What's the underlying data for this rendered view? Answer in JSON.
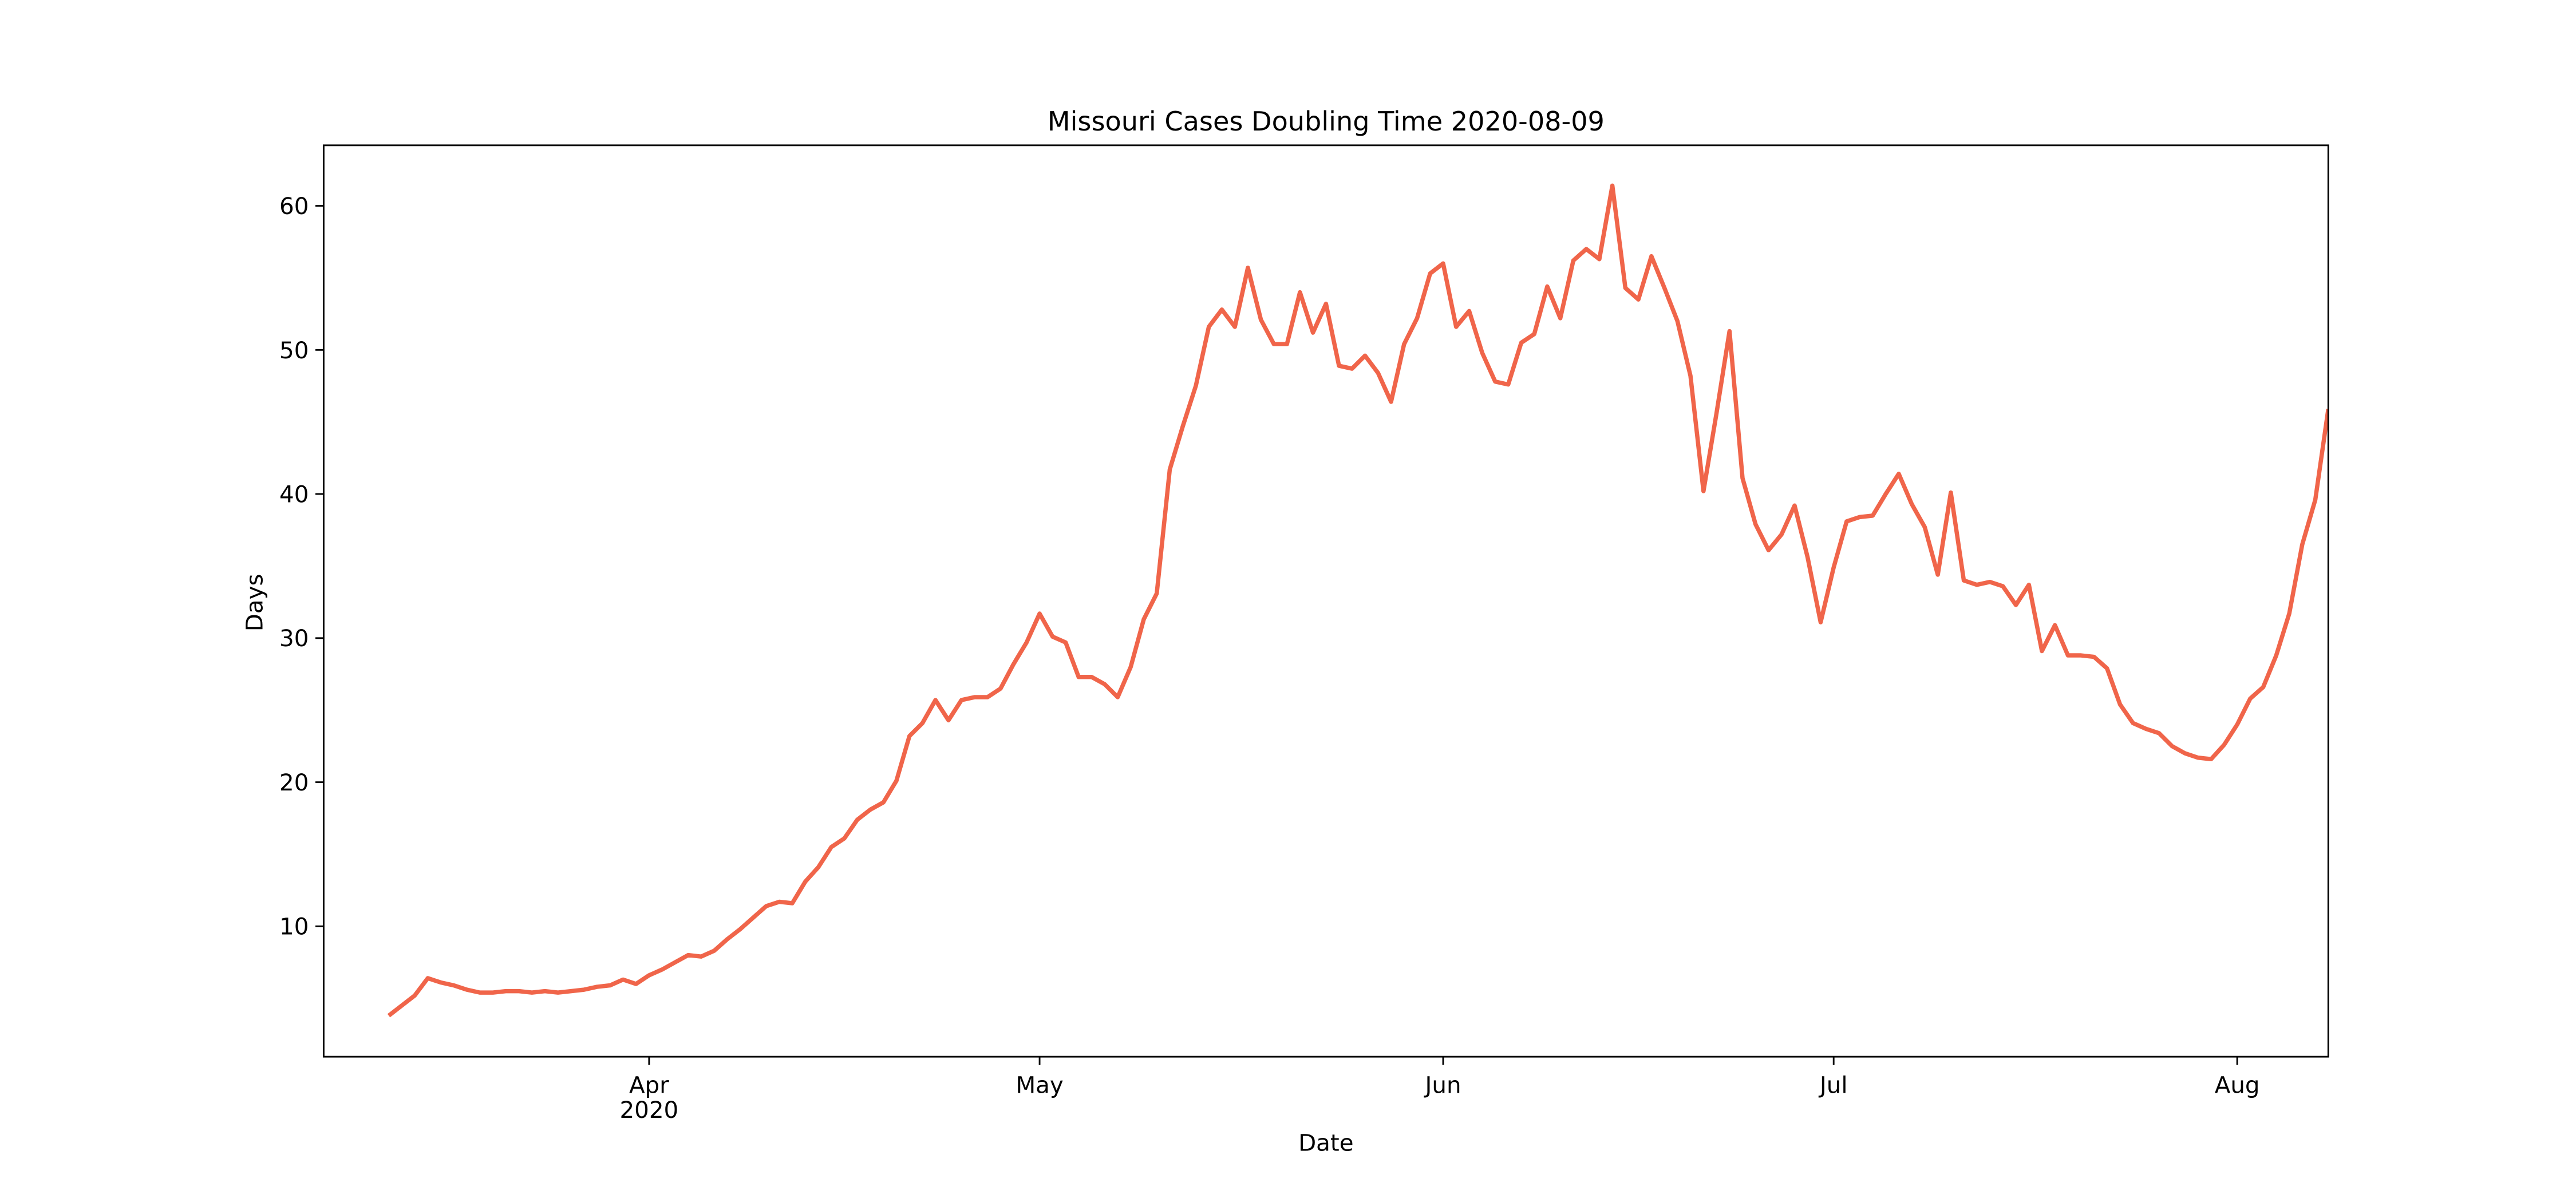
{
  "chart_data": {
    "type": "line",
    "title": "Missouri Cases Doubling Time 2020-08-09",
    "x_label": "Date",
    "y_label": "Days",
    "x_year_label": "2020",
    "xlim": [
      "2020-03-07",
      "2020-08-08"
    ],
    "xticks": [
      {
        "value": "2020-04-01",
        "label": "Apr"
      },
      {
        "value": "2020-05-01",
        "label": "May"
      },
      {
        "value": "2020-06-01",
        "label": "Jun"
      },
      {
        "value": "2020-07-01",
        "label": "Jul"
      },
      {
        "value": "2020-08-01",
        "label": "Aug"
      }
    ],
    "ylim": [
      0.95,
      64.2
    ],
    "yticks": [
      10,
      20,
      30,
      40,
      50,
      60
    ],
    "grid": false,
    "x": [
      "2020-03-12",
      "2020-03-13",
      "2020-03-14",
      "2020-03-15",
      "2020-03-16",
      "2020-03-17",
      "2020-03-18",
      "2020-03-19",
      "2020-03-20",
      "2020-03-21",
      "2020-03-22",
      "2020-03-23",
      "2020-03-24",
      "2020-03-25",
      "2020-03-26",
      "2020-03-27",
      "2020-03-28",
      "2020-03-29",
      "2020-03-30",
      "2020-03-31",
      "2020-04-01",
      "2020-04-02",
      "2020-04-03",
      "2020-04-04",
      "2020-04-05",
      "2020-04-06",
      "2020-04-07",
      "2020-04-08",
      "2020-04-09",
      "2020-04-10",
      "2020-04-11",
      "2020-04-12",
      "2020-04-13",
      "2020-04-14",
      "2020-04-15",
      "2020-04-16",
      "2020-04-17",
      "2020-04-18",
      "2020-04-19",
      "2020-04-20",
      "2020-04-21",
      "2020-04-22",
      "2020-04-23",
      "2020-04-24",
      "2020-04-25",
      "2020-04-26",
      "2020-04-27",
      "2020-04-28",
      "2020-04-29",
      "2020-04-30",
      "2020-05-01",
      "2020-05-02",
      "2020-05-03",
      "2020-05-04",
      "2020-05-05",
      "2020-05-06",
      "2020-05-07",
      "2020-05-08",
      "2020-05-09",
      "2020-05-10",
      "2020-05-11",
      "2020-05-12",
      "2020-05-13",
      "2020-05-14",
      "2020-05-15",
      "2020-05-16",
      "2020-05-17",
      "2020-05-18",
      "2020-05-19",
      "2020-05-20",
      "2020-05-21",
      "2020-05-22",
      "2020-05-23",
      "2020-05-24",
      "2020-05-25",
      "2020-05-26",
      "2020-05-27",
      "2020-05-28",
      "2020-05-29",
      "2020-05-30",
      "2020-05-31",
      "2020-06-01",
      "2020-06-02",
      "2020-06-03",
      "2020-06-04",
      "2020-06-05",
      "2020-06-06",
      "2020-06-07",
      "2020-06-08",
      "2020-06-09",
      "2020-06-10",
      "2020-06-11",
      "2020-06-12",
      "2020-06-13",
      "2020-06-14",
      "2020-06-15",
      "2020-06-16",
      "2020-06-17",
      "2020-06-18",
      "2020-06-19",
      "2020-06-20",
      "2020-06-21",
      "2020-06-22",
      "2020-06-23",
      "2020-06-24",
      "2020-06-25",
      "2020-06-26",
      "2020-06-27",
      "2020-06-28",
      "2020-06-29",
      "2020-06-30",
      "2020-07-01",
      "2020-07-02",
      "2020-07-03",
      "2020-07-04",
      "2020-07-05",
      "2020-07-06",
      "2020-07-07",
      "2020-07-08",
      "2020-07-09",
      "2020-07-10",
      "2020-07-11",
      "2020-07-12",
      "2020-07-13",
      "2020-07-14",
      "2020-07-15",
      "2020-07-16",
      "2020-07-17",
      "2020-07-18",
      "2020-07-19",
      "2020-07-20",
      "2020-07-21",
      "2020-07-22",
      "2020-07-23",
      "2020-07-24",
      "2020-07-25",
      "2020-07-26",
      "2020-07-27",
      "2020-07-28",
      "2020-07-29",
      "2020-07-30",
      "2020-07-31",
      "2020-08-01",
      "2020-08-02",
      "2020-08-03",
      "2020-08-04",
      "2020-08-05",
      "2020-08-06",
      "2020-08-07",
      "2020-08-08"
    ],
    "series": [
      {
        "color": "#f0654a",
        "values": [
          3.8,
          4.5,
          5.2,
          6.4,
          6.1,
          5.9,
          5.6,
          5.4,
          5.4,
          5.5,
          5.5,
          5.4,
          5.5,
          5.4,
          5.5,
          5.6,
          5.8,
          5.9,
          6.3,
          6.0,
          6.6,
          7.0,
          7.5,
          8.0,
          7.9,
          8.3,
          9.1,
          9.8,
          10.6,
          11.4,
          11.7,
          11.6,
          13.1,
          14.1,
          15.5,
          16.1,
          17.4,
          18.1,
          18.6,
          20.1,
          23.2,
          24.1,
          25.7,
          24.3,
          25.7,
          25.9,
          25.9,
          26.5,
          28.2,
          29.7,
          31.7,
          30.1,
          29.7,
          27.3,
          27.3,
          26.8,
          25.9,
          28.0,
          31.3,
          33.1,
          41.7,
          44.7,
          47.5,
          51.6,
          52.8,
          51.6,
          55.7,
          52.1,
          50.4,
          50.4,
          54.0,
          51.2,
          53.2,
          48.9,
          48.7,
          49.6,
          48.4,
          46.4,
          50.4,
          52.2,
          55.3,
          56.0,
          51.6,
          52.7,
          49.8,
          47.8,
          47.6,
          50.5,
          51.1,
          54.4,
          52.2,
          56.2,
          57.0,
          56.3,
          61.4,
          54.3,
          53.5,
          56.5,
          54.3,
          52.0,
          48.2,
          40.2,
          45.6,
          51.3,
          41.1,
          37.9,
          36.1,
          37.2,
          39.2,
          35.6,
          31.1,
          34.9,
          38.1,
          38.4,
          38.5,
          40.0,
          41.4,
          39.3,
          37.7,
          34.4,
          40.1,
          34.0,
          33.7,
          33.9,
          33.6,
          32.3,
          33.7,
          29.1,
          30.9,
          28.8,
          28.8,
          28.7,
          27.9,
          25.4,
          24.1,
          23.7,
          23.4,
          22.5,
          22.0,
          21.7,
          21.6,
          22.6,
          24.0,
          25.8,
          26.6,
          28.8,
          31.7,
          36.5,
          39.6,
          45.9
        ]
      }
    ]
  }
}
